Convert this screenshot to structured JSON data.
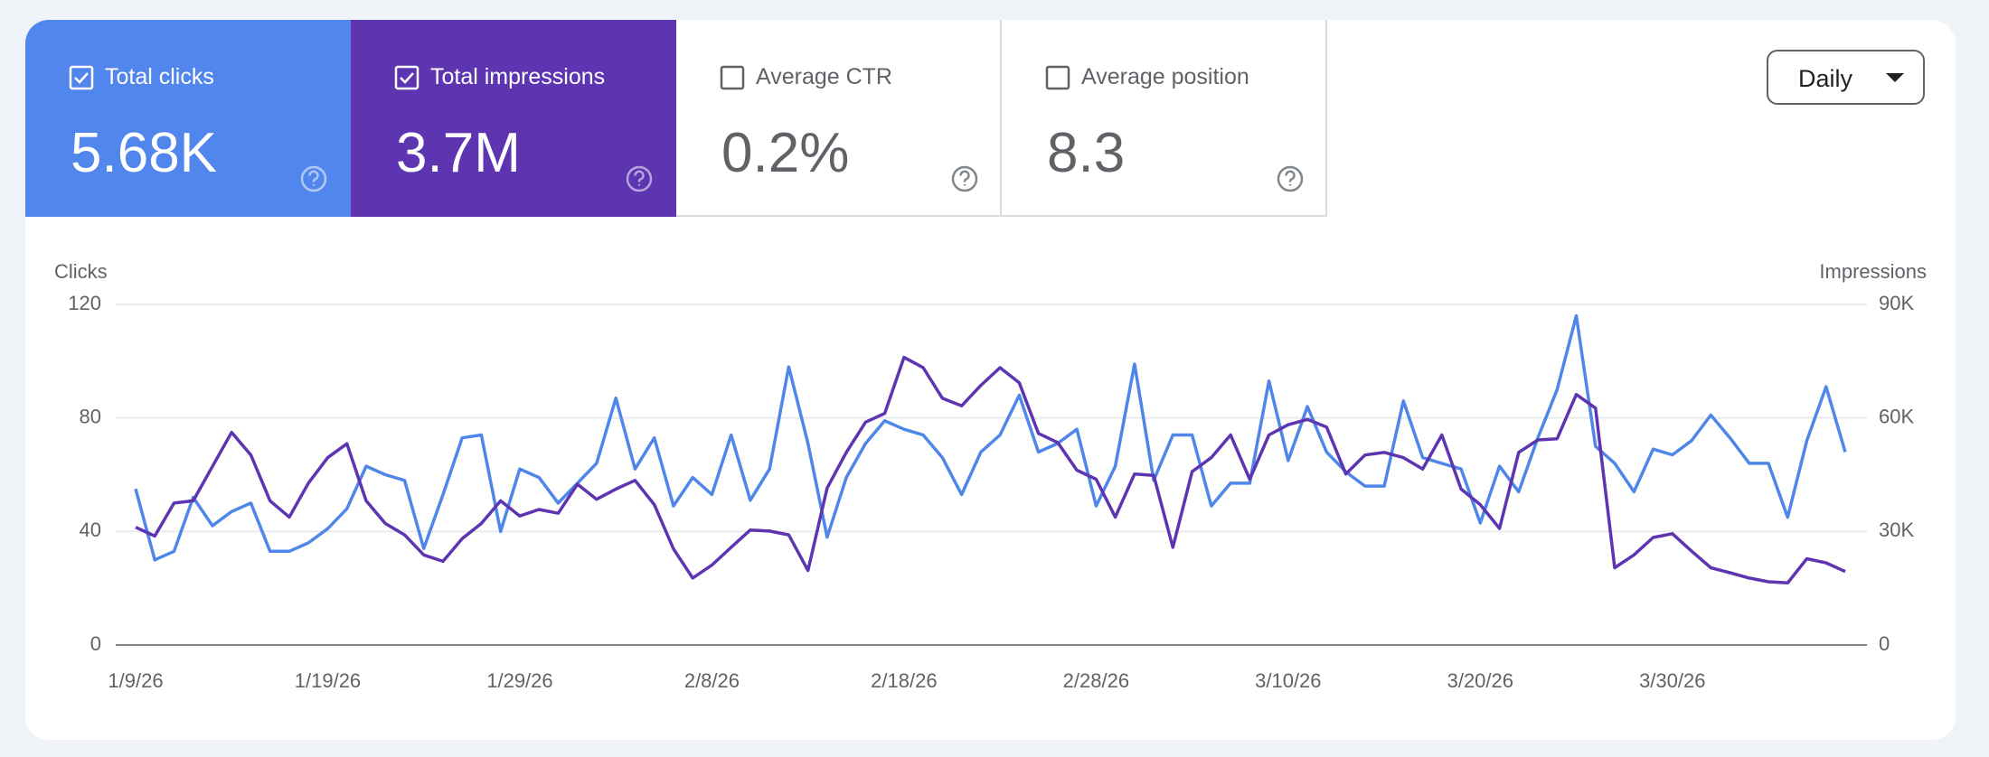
{
  "metric_cards": [
    {
      "label": "Total clicks",
      "value": "5.68K",
      "checked": true,
      "color": "#5186ec"
    },
    {
      "label": "Total impressions",
      "value": "3.7M",
      "checked": true,
      "color": "#5e35b1"
    },
    {
      "label": "Average CTR",
      "value": "0.2%",
      "checked": false,
      "color": "#ffffff"
    },
    {
      "label": "Average position",
      "value": "8.3",
      "checked": false,
      "color": "#ffffff"
    }
  ],
  "period_selector": "Daily",
  "chart_data": {
    "type": "line",
    "y_label": "Clicks",
    "y2_label": "Impressions",
    "categories": [
      "1/9/26",
      null,
      null,
      null,
      null,
      null,
      null,
      null,
      null,
      null,
      "1/19/26",
      null,
      null,
      null,
      null,
      null,
      null,
      null,
      null,
      null,
      "1/29/26",
      null,
      null,
      null,
      null,
      null,
      null,
      null,
      null,
      null,
      "2/8/26",
      null,
      null,
      null,
      null,
      null,
      null,
      null,
      null,
      null,
      "2/18/26",
      null,
      null,
      null,
      null,
      null,
      null,
      null,
      null,
      null,
      "2/28/26",
      null,
      null,
      null,
      null,
      null,
      null,
      null,
      null,
      null,
      "3/10/26",
      null,
      null,
      null,
      null,
      null,
      null,
      null,
      null,
      null,
      "3/20/26",
      null,
      null,
      null,
      null,
      null,
      null,
      null,
      null,
      null,
      "3/30/26",
      null,
      null,
      null,
      null,
      null,
      null,
      null,
      null,
      null
    ],
    "series": [
      {
        "name": "Clicks",
        "color": "#4f86ea",
        "values": [
          55,
          30,
          33,
          52,
          42,
          47,
          50,
          33,
          33,
          36,
          41,
          48,
          63,
          60,
          58,
          34,
          53,
          73,
          74,
          40,
          62,
          59,
          50,
          57,
          64,
          87,
          62,
          73,
          49,
          59,
          53,
          74,
          51,
          62,
          98,
          71,
          38,
          59,
          71,
          79,
          76,
          74,
          66,
          53,
          68,
          74,
          88,
          68,
          71,
          76,
          49,
          63,
          99,
          58,
          74,
          74,
          49,
          57,
          57,
          93,
          65,
          84,
          68,
          61,
          56,
          56,
          86,
          66,
          64,
          62,
          43,
          63,
          54,
          73,
          90,
          116,
          70,
          64,
          54,
          69,
          67,
          72,
          81,
          73,
          64,
          64,
          45,
          72,
          91,
          68
        ]
      },
      {
        "name": "Impressions",
        "color": "#5e35b1",
        "axis": "y2",
        "values": [
          31100,
          28800,
          37500,
          38100,
          47200,
          56200,
          50200,
          38100,
          33800,
          42800,
          49500,
          53200,
          38100,
          32100,
          29100,
          23800,
          22100,
          28100,
          32100,
          38100,
          34100,
          35800,
          34800,
          42500,
          38500,
          41200,
          43500,
          37100,
          25400,
          17700,
          21100,
          25800,
          30400,
          30100,
          29100,
          19700,
          41500,
          50900,
          58900,
          61200,
          76000,
          73300,
          65200,
          63200,
          68600,
          73300,
          69300,
          55900,
          53500,
          46200,
          43800,
          33800,
          45200,
          44800,
          25800,
          45800,
          49500,
          55500,
          43800,
          55500,
          58200,
          59600,
          57600,
          45200,
          50200,
          50900,
          49500,
          46500,
          55500,
          41200,
          37100,
          30800,
          50900,
          54200,
          54500,
          66200,
          62600,
          20400,
          23800,
          28400,
          29400,
          24800,
          20400,
          19100,
          17700,
          16700,
          16400,
          22800,
          21700,
          19400
        ]
      }
    ],
    "ylim": [
      0,
      120
    ],
    "yticks": [
      0,
      40,
      80,
      120
    ],
    "y2lim": [
      0,
      90000
    ],
    "y2ticks": [
      0,
      {
        "value": 30000,
        "label": "30K"
      },
      {
        "value": 60000,
        "label": "60K"
      },
      {
        "value": 90000,
        "label": "90K"
      }
    ],
    "grid": true
  }
}
